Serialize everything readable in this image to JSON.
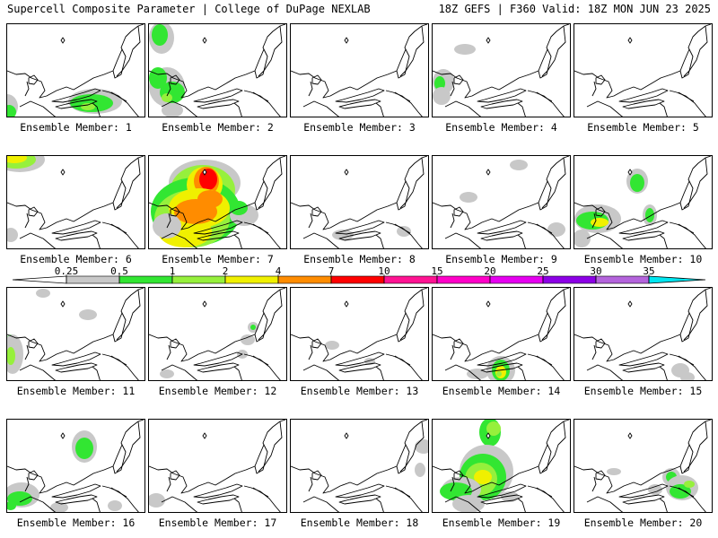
{
  "header": {
    "left": "Supercell Composite Parameter | College of DuPage NEXLAB",
    "right": "18Z GEFS | F360 Valid: 18Z MON JUN 23 2025"
  },
  "panels": [
    {
      "label": "Ensemble Member: 1"
    },
    {
      "label": "Ensemble Member: 2"
    },
    {
      "label": "Ensemble Member: 3"
    },
    {
      "label": "Ensemble Member: 4"
    },
    {
      "label": "Ensemble Member: 5"
    },
    {
      "label": "Ensemble Member: 6"
    },
    {
      "label": "Ensemble Member: 7"
    },
    {
      "label": "Ensemble Member: 8"
    },
    {
      "label": "Ensemble Member: 9"
    },
    {
      "label": "Ensemble Member: 10"
    },
    {
      "label": "Ensemble Member: 11"
    },
    {
      "label": "Ensemble Member: 12"
    },
    {
      "label": "Ensemble Member: 13"
    },
    {
      "label": "Ensemble Member: 14"
    },
    {
      "label": "Ensemble Member: 15"
    },
    {
      "label": "Ensemble Member: 16"
    },
    {
      "label": "Ensemble Member: 17"
    },
    {
      "label": "Ensemble Member: 18"
    },
    {
      "label": "Ensemble Member: 19"
    },
    {
      "label": "Ensemble Member: 20"
    }
  ],
  "colorbar": {
    "ticks": [
      "0.25",
      "0.5",
      "1",
      "2",
      "4",
      "7",
      "10",
      "15",
      "20",
      "25",
      "30",
      "35"
    ],
    "colors": [
      "#c8c8c8",
      "#32e632",
      "#96f03c",
      "#f0f000",
      "#ff8c00",
      "#ff0000",
      "#ff1493",
      "#ff00c8",
      "#e600f0",
      "#8c00e6",
      "#b464dc",
      "#00e6f0"
    ]
  }
}
